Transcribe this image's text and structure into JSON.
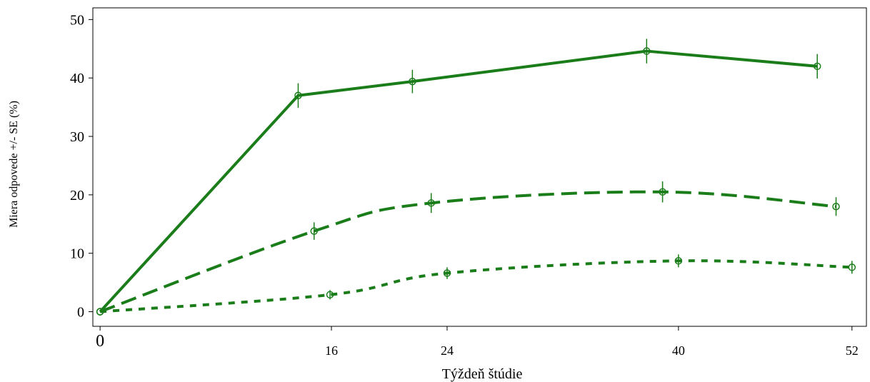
{
  "chart_data": {
    "type": "line",
    "title": "",
    "xlabel": "Týždeň štúdie",
    "ylabel": "Miera odpovede +/- SE (%)",
    "xlim": [
      -0.5,
      53
    ],
    "ylim": [
      -2.5,
      52
    ],
    "x_ticks": [
      0,
      16,
      24,
      40,
      52
    ],
    "x_tick_labels": [
      "0",
      "16",
      "24",
      "40",
      "52"
    ],
    "y_ticks": [
      0,
      10,
      20,
      30,
      40,
      50
    ],
    "y_tick_labels": [
      "0",
      "10",
      "20",
      "30",
      "40",
      "50"
    ],
    "grid": false,
    "legend": "none",
    "color": "#1a7d1a",
    "series": [
      {
        "style": "solid",
        "points": [
          {
            "x": 0,
            "y": 0,
            "se": 0
          },
          {
            "x": 13.7,
            "y": 37.0,
            "se": 2.1
          },
          {
            "x": 21.6,
            "y": 39.4,
            "se": 2.0
          },
          {
            "x": 37.8,
            "y": 44.6,
            "se": 2.1
          },
          {
            "x": 49.6,
            "y": 42.0,
            "se": 2.1
          }
        ]
      },
      {
        "style": "dashed",
        "points": [
          {
            "x": 0,
            "y": 0,
            "se": 0
          },
          {
            "x": 14.8,
            "y": 13.8,
            "se": 1.5
          },
          {
            "x": 22.9,
            "y": 18.6,
            "se": 1.7
          },
          {
            "x": 38.9,
            "y": 20.5,
            "se": 1.8
          },
          {
            "x": 50.9,
            "y": 18.0,
            "se": 1.6
          }
        ]
      },
      {
        "style": "dotted",
        "points": [
          {
            "x": 0,
            "y": 0,
            "se": 0
          },
          {
            "x": 15.9,
            "y": 2.9,
            "se": 0.8
          },
          {
            "x": 24.0,
            "y": 6.6,
            "se": 1.0
          },
          {
            "x": 40.0,
            "y": 8.7,
            "se": 1.1
          },
          {
            "x": 52.0,
            "y": 7.6,
            "se": 1.1
          }
        ]
      }
    ]
  }
}
